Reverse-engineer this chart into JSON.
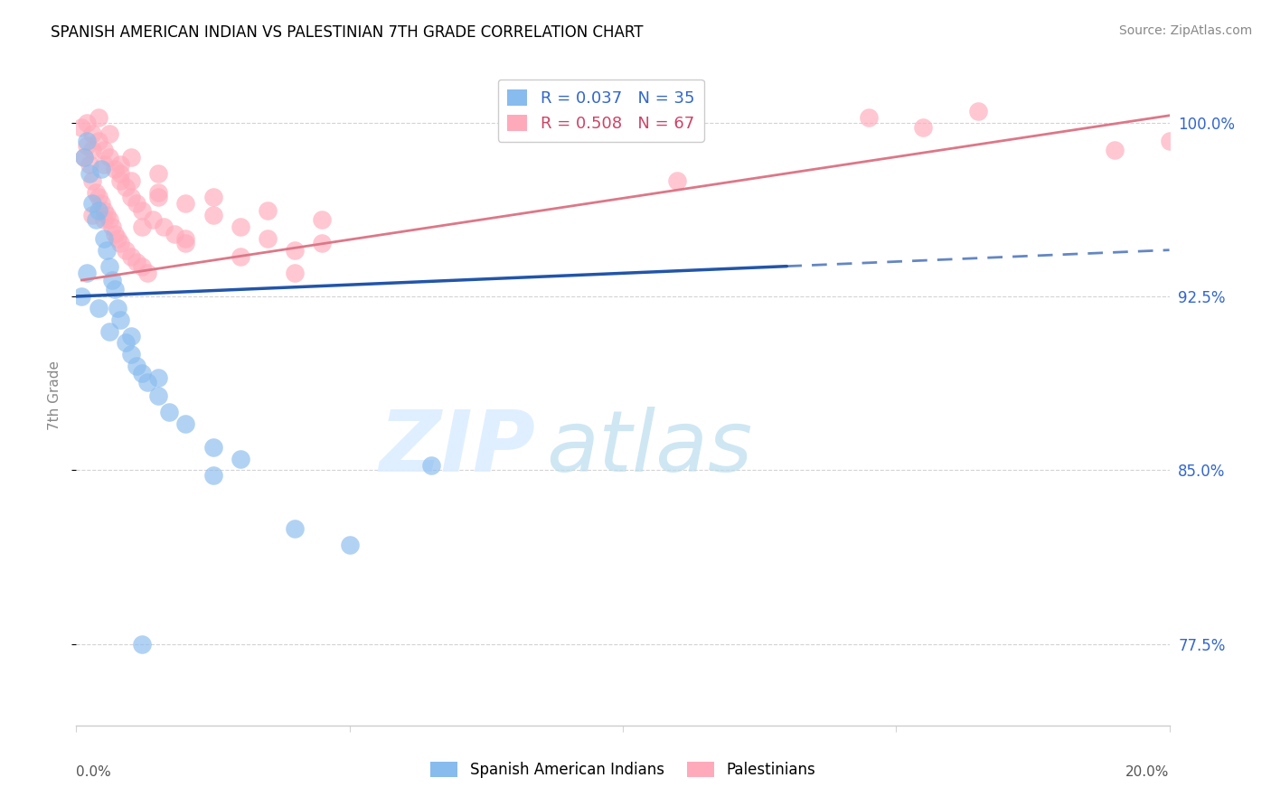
{
  "title": "SPANISH AMERICAN INDIAN VS PALESTINIAN 7TH GRADE CORRELATION CHART",
  "source": "Source: ZipAtlas.com",
  "ylabel": "7th Grade",
  "xlim": [
    0.0,
    20.0
  ],
  "ylim": [
    74.0,
    102.5
  ],
  "yticks": [
    77.5,
    85.0,
    92.5,
    100.0
  ],
  "ytick_labels": [
    "77.5%",
    "85.0%",
    "92.5%",
    "100.0%"
  ],
  "legend_label_blue": "R = 0.037   N = 35",
  "legend_label_pink": "R = 0.508   N = 67",
  "legend_labels_bottom": [
    "Spanish American Indians",
    "Palestinians"
  ],
  "blue_color": "#88BBEE",
  "pink_color": "#FFAABB",
  "blue_line_color": "#2255AA",
  "pink_line_color": "#DD7788",
  "blue_scatter": [
    [
      0.1,
      92.5
    ],
    [
      0.15,
      98.5
    ],
    [
      0.2,
      99.2
    ],
    [
      0.25,
      97.8
    ],
    [
      0.3,
      96.5
    ],
    [
      0.35,
      95.8
    ],
    [
      0.4,
      96.2
    ],
    [
      0.45,
      98.0
    ],
    [
      0.5,
      95.0
    ],
    [
      0.55,
      94.5
    ],
    [
      0.6,
      93.8
    ],
    [
      0.65,
      93.2
    ],
    [
      0.7,
      92.8
    ],
    [
      0.75,
      92.0
    ],
    [
      0.8,
      91.5
    ],
    [
      0.9,
      90.5
    ],
    [
      1.0,
      90.0
    ],
    [
      1.1,
      89.5
    ],
    [
      1.2,
      89.2
    ],
    [
      1.3,
      88.8
    ],
    [
      1.5,
      88.2
    ],
    [
      1.7,
      87.5
    ],
    [
      2.0,
      87.0
    ],
    [
      2.5,
      86.0
    ],
    [
      3.0,
      85.5
    ],
    [
      0.2,
      93.5
    ],
    [
      0.4,
      92.0
    ],
    [
      0.6,
      91.0
    ],
    [
      1.0,
      90.8
    ],
    [
      1.5,
      89.0
    ],
    [
      2.5,
      84.8
    ],
    [
      4.0,
      82.5
    ],
    [
      5.0,
      81.8
    ],
    [
      6.5,
      85.2
    ],
    [
      1.2,
      77.5
    ]
  ],
  "pink_scatter": [
    [
      0.1,
      99.8
    ],
    [
      0.15,
      98.5
    ],
    [
      0.2,
      99.0
    ],
    [
      0.25,
      98.2
    ],
    [
      0.3,
      97.5
    ],
    [
      0.35,
      97.0
    ],
    [
      0.4,
      96.8
    ],
    [
      0.45,
      96.5
    ],
    [
      0.5,
      96.2
    ],
    [
      0.55,
      96.0
    ],
    [
      0.6,
      95.8
    ],
    [
      0.65,
      95.5
    ],
    [
      0.7,
      95.2
    ],
    [
      0.75,
      95.0
    ],
    [
      0.8,
      94.8
    ],
    [
      0.9,
      94.5
    ],
    [
      1.0,
      94.2
    ],
    [
      1.1,
      94.0
    ],
    [
      1.2,
      93.8
    ],
    [
      1.3,
      93.5
    ],
    [
      0.2,
      100.0
    ],
    [
      0.3,
      99.5
    ],
    [
      0.4,
      99.2
    ],
    [
      0.5,
      98.8
    ],
    [
      0.6,
      98.5
    ],
    [
      0.7,
      98.0
    ],
    [
      0.8,
      97.5
    ],
    [
      0.9,
      97.2
    ],
    [
      1.0,
      96.8
    ],
    [
      1.1,
      96.5
    ],
    [
      1.2,
      96.2
    ],
    [
      1.4,
      95.8
    ],
    [
      1.6,
      95.5
    ],
    [
      1.8,
      95.2
    ],
    [
      2.0,
      95.0
    ],
    [
      0.3,
      98.8
    ],
    [
      0.5,
      98.2
    ],
    [
      0.8,
      97.8
    ],
    [
      1.0,
      97.5
    ],
    [
      1.5,
      96.8
    ],
    [
      2.0,
      96.5
    ],
    [
      2.5,
      96.0
    ],
    [
      3.0,
      95.5
    ],
    [
      3.5,
      95.0
    ],
    [
      4.0,
      94.5
    ],
    [
      0.4,
      100.2
    ],
    [
      0.6,
      99.5
    ],
    [
      1.0,
      98.5
    ],
    [
      1.5,
      97.8
    ],
    [
      2.5,
      96.8
    ],
    [
      3.5,
      96.2
    ],
    [
      4.5,
      95.8
    ],
    [
      0.3,
      96.0
    ],
    [
      0.5,
      95.8
    ],
    [
      1.2,
      95.5
    ],
    [
      2.0,
      94.8
    ],
    [
      3.0,
      94.2
    ],
    [
      4.0,
      93.5
    ],
    [
      0.8,
      98.2
    ],
    [
      1.5,
      97.0
    ],
    [
      14.5,
      100.2
    ],
    [
      15.5,
      99.8
    ],
    [
      16.5,
      100.5
    ],
    [
      19.0,
      98.8
    ],
    [
      20.0,
      99.2
    ],
    [
      11.0,
      97.5
    ],
    [
      4.5,
      94.8
    ]
  ]
}
